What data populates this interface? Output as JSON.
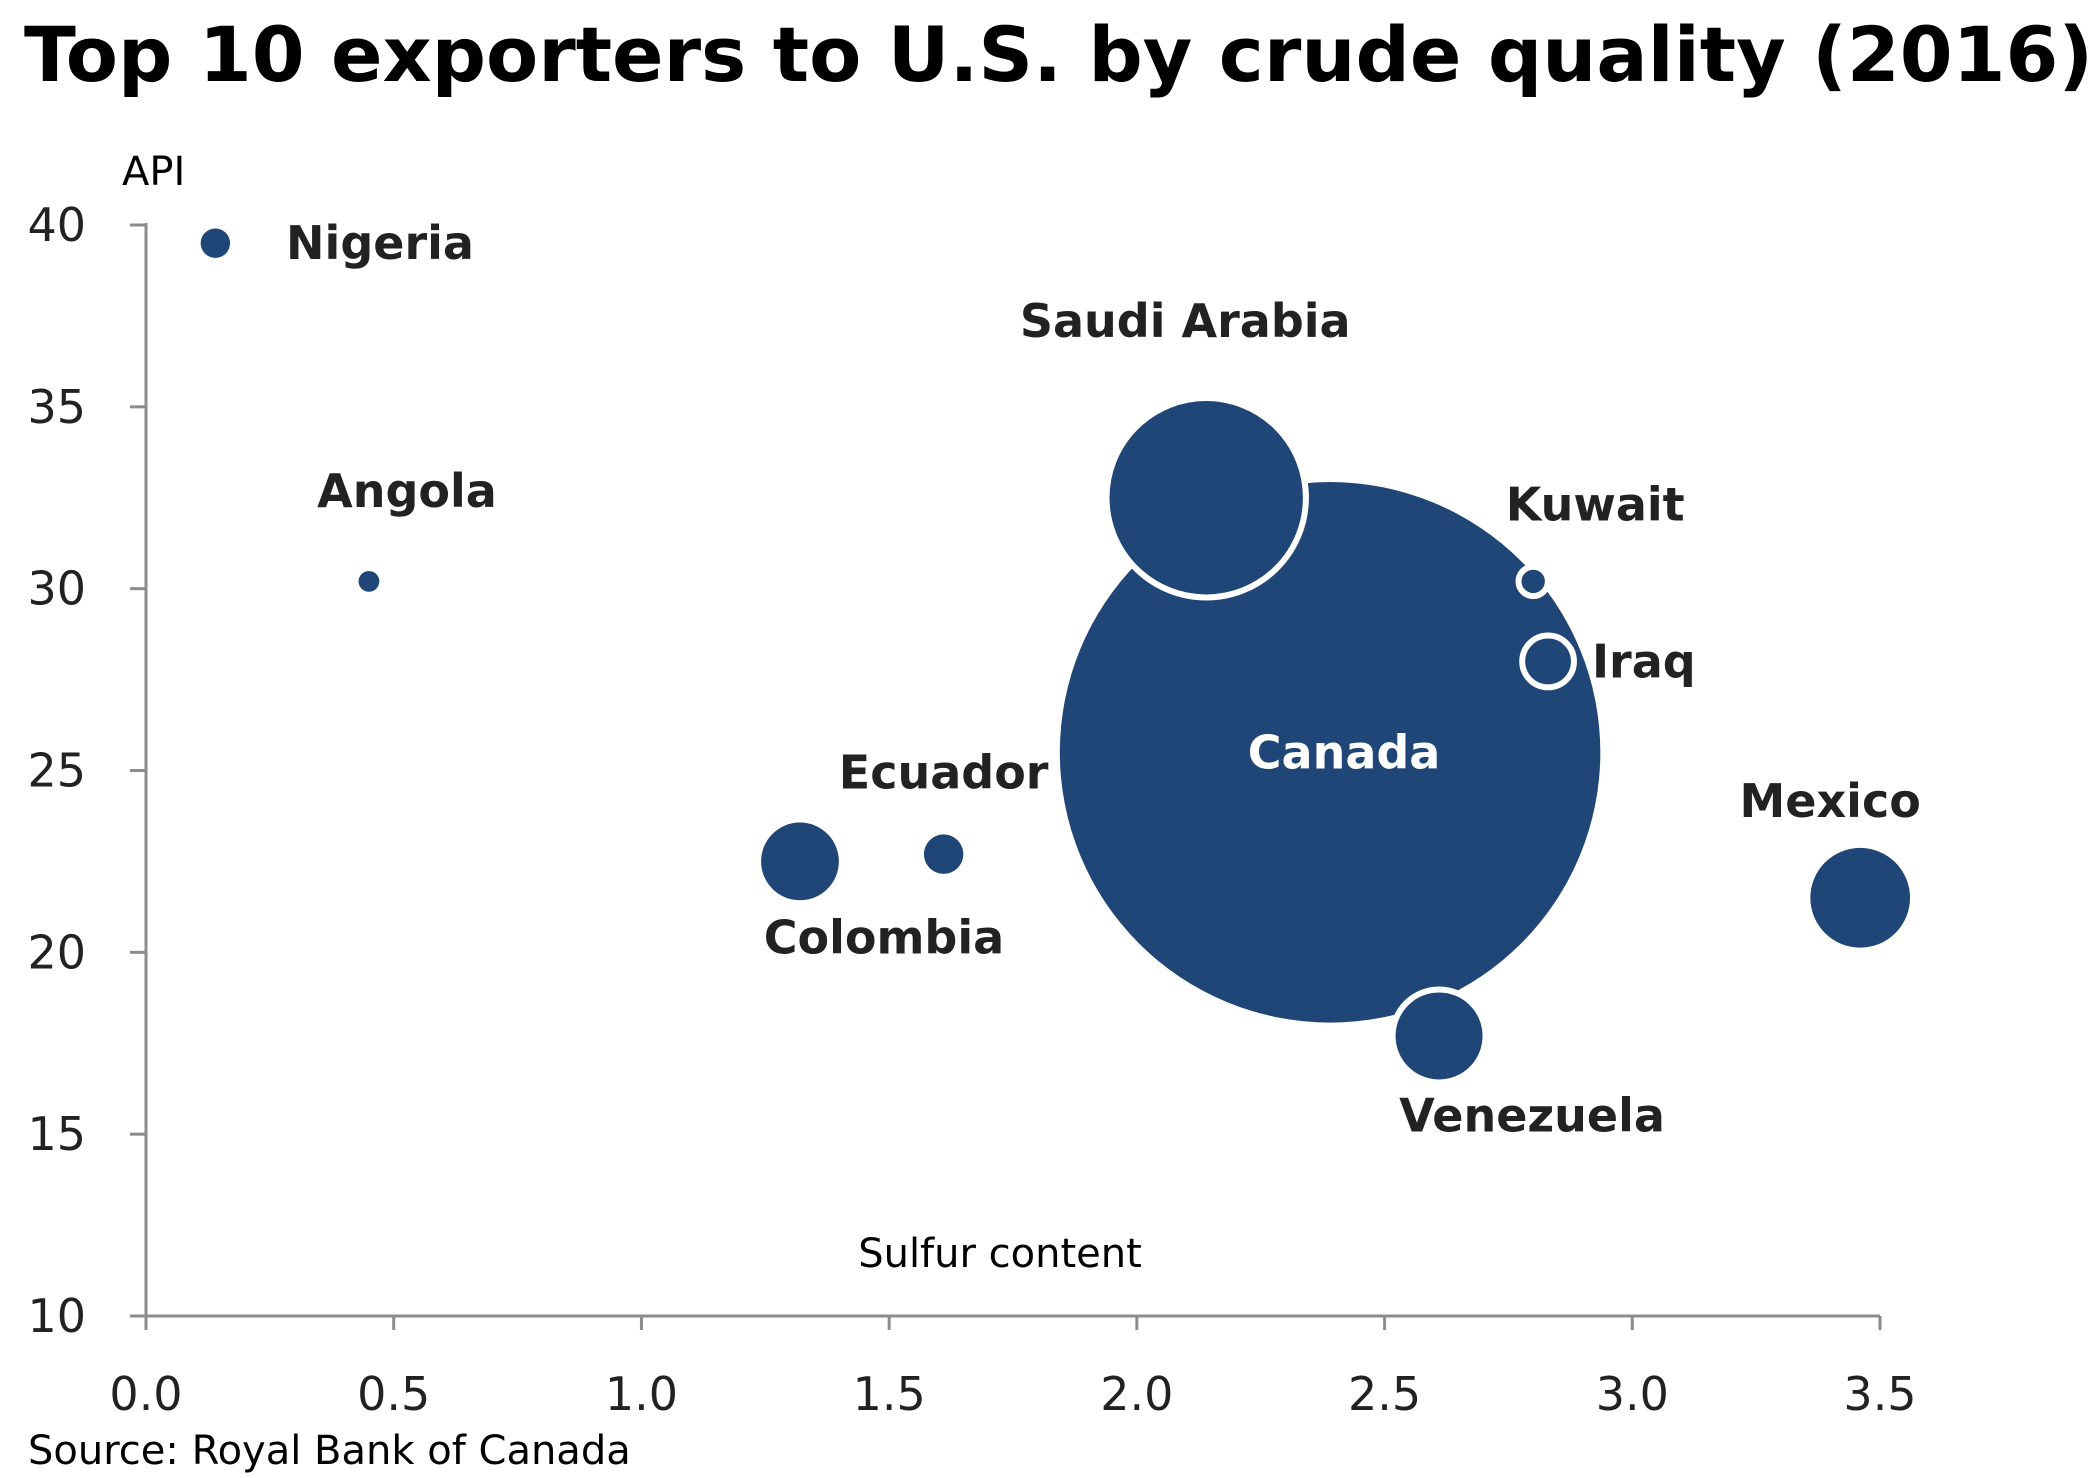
{
  "page": {
    "title": "Top 10 exporters to U.S. by crude quality (2016)",
    "source": "Source: Royal Bank of Canada"
  },
  "chart_data": {
    "type": "scatter",
    "title": "Top 10 exporters to U.S. by crude quality (2016)",
    "xlabel": "Sulfur content",
    "ylabel": "API",
    "xlim": [
      0.0,
      3.5
    ],
    "ylim": [
      10,
      40
    ],
    "xticks": [
      "0.0",
      "0.5",
      "1.0",
      "1.5",
      "2.0",
      "2.5",
      "3.0",
      "3.5"
    ],
    "yticks": [
      "10",
      "15",
      "20",
      "25",
      "30",
      "35",
      "40"
    ],
    "bubble_color": "#1f4677",
    "points": [
      {
        "name": "Nigeria",
        "x": 0.14,
        "y": 39.5,
        "size": 1.0,
        "outline": false,
        "label_pos": "right"
      },
      {
        "name": "Angola",
        "x": 0.45,
        "y": 30.2,
        "size": 0.5,
        "outline": false,
        "label_pos": "above"
      },
      {
        "name": "Colombia",
        "x": 1.32,
        "y": 22.5,
        "size": 7.0,
        "outline": false,
        "label_pos": "below"
      },
      {
        "name": "Ecuador",
        "x": 1.61,
        "y": 22.7,
        "size": 1.8,
        "outline": false,
        "label_pos": "above"
      },
      {
        "name": "Saudi Arabia",
        "x": 2.14,
        "y": 32.5,
        "size": 46.0,
        "outline": true,
        "label_pos": "above"
      },
      {
        "name": "Canada",
        "x": 2.39,
        "y": 25.5,
        "size": 338.0,
        "outline": false,
        "label_pos": "inside"
      },
      {
        "name": "Kuwait",
        "x": 2.8,
        "y": 30.2,
        "size": 1.0,
        "outline": true,
        "label_pos": "above"
      },
      {
        "name": "Iraq",
        "x": 2.83,
        "y": 28.0,
        "size": 3.1,
        "outline": true,
        "label_pos": "right"
      },
      {
        "name": "Venezuela",
        "x": 2.61,
        "y": 17.7,
        "size": 10.0,
        "outline": true,
        "label_pos": "below"
      },
      {
        "name": "Mexico",
        "x": 3.46,
        "y": 21.5,
        "size": 11.5,
        "outline": false,
        "label_pos": "above"
      }
    ]
  }
}
